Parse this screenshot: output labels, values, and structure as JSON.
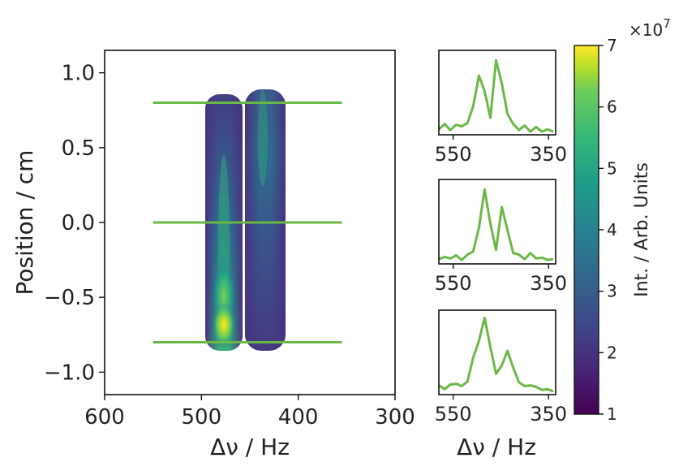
{
  "chart_data": [
    {
      "type": "heatmap",
      "panel": "main",
      "xlabel": "Δν / Hz",
      "ylabel": "Position / cm",
      "xlim": [
        600,
        300
      ],
      "ylim": [
        -1.15,
        1.15
      ],
      "xticks": [
        600,
        500,
        400,
        300
      ],
      "xtick_labels": [
        "600",
        "500",
        "400",
        "300"
      ],
      "yticks": [
        1.0,
        0.5,
        0.0,
        -0.5,
        -1.0
      ],
      "ytick_labels": [
        "1.0",
        "0.5",
        "0.0",
        "−0.5",
        "−1.0"
      ],
      "colormap": "viridis",
      "columns": [
        {
          "center": 480,
          "width": 40,
          "y_range": [
            -0.85,
            0.85
          ]
        },
        {
          "center": 435,
          "width": 42,
          "y_range": [
            -0.85,
            0.88
          ]
        }
      ],
      "peak": {
        "x": 480,
        "y": -0.7
      },
      "cut_lines": {
        "color": "#6ab846",
        "x_range": [
          550,
          355
        ],
        "y": [
          0.8,
          0.0,
          -0.8
        ]
      }
    },
    {
      "type": "line",
      "panel": "cut-top",
      "xlim": [
        580,
        335
      ],
      "xticks": [
        550,
        350
      ],
      "xtick_labels": [
        "550",
        "350"
      ],
      "color": "#6ab846",
      "x": [
        580,
        568,
        556,
        544,
        532,
        520,
        508,
        496,
        484,
        472,
        460,
        448,
        436,
        424,
        412,
        400,
        388,
        376,
        364,
        352,
        340
      ],
      "y": [
        0.05,
        0.12,
        0.04,
        0.11,
        0.09,
        0.13,
        0.35,
        0.75,
        0.55,
        0.2,
        0.95,
        0.65,
        0.25,
        0.12,
        0.04,
        0.1,
        0.02,
        0.08,
        0.02,
        0.05,
        0.02
      ]
    },
    {
      "type": "line",
      "panel": "cut-middle",
      "xlim": [
        580,
        335
      ],
      "xticks": [
        550,
        350
      ],
      "xtick_labels": [
        "550",
        "350"
      ],
      "color": "#6ab846",
      "x": [
        580,
        568,
        556,
        544,
        532,
        520,
        508,
        496,
        484,
        472,
        460,
        448,
        436,
        424,
        412,
        400,
        388,
        376,
        364,
        352,
        340
      ],
      "y": [
        0.04,
        0.07,
        0.05,
        0.09,
        0.03,
        0.1,
        0.14,
        0.45,
        0.95,
        0.5,
        0.16,
        0.72,
        0.42,
        0.12,
        0.1,
        0.04,
        0.12,
        0.05,
        0.06,
        0.03,
        0.04
      ]
    },
    {
      "type": "line",
      "panel": "cut-bottom",
      "xlim": [
        580,
        335
      ],
      "xticks": [
        550,
        350
      ],
      "xtick_labels": [
        "550",
        "350"
      ],
      "xlabel": "Δν / Hz",
      "color": "#6ab846",
      "x": [
        580,
        568,
        556,
        544,
        532,
        520,
        508,
        496,
        484,
        472,
        460,
        448,
        436,
        424,
        412,
        400,
        388,
        376,
        364,
        352,
        340
      ],
      "y": [
        0.1,
        0.05,
        0.11,
        0.12,
        0.09,
        0.15,
        0.46,
        0.68,
        0.98,
        0.6,
        0.25,
        0.36,
        0.55,
        0.33,
        0.14,
        0.09,
        0.1,
        0.08,
        0.04,
        0.05,
        0.02
      ]
    },
    {
      "type": "colorbar",
      "label": "Int. / Arb. Units",
      "multiplier": "×10",
      "multiplier_exponent": "7",
      "range": [
        1,
        7
      ],
      "ticks": [
        1,
        2,
        3,
        4,
        5,
        6,
        7
      ],
      "tick_labels": [
        "1",
        "2",
        "3",
        "4",
        "5",
        "6",
        "7"
      ],
      "colormap": "viridis"
    }
  ]
}
